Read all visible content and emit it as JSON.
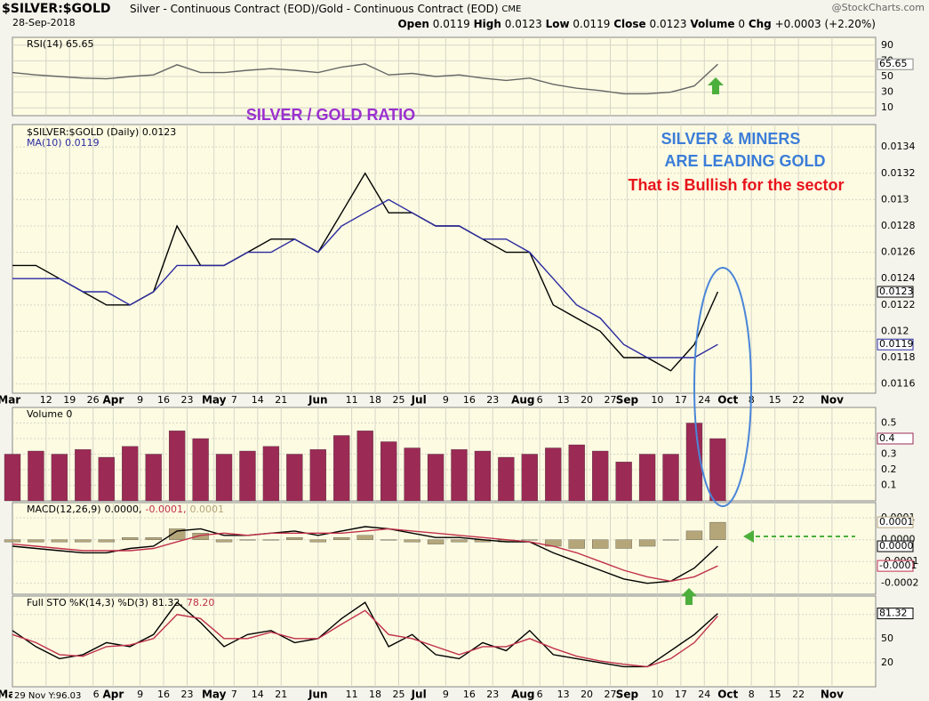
{
  "header": {
    "symbol": "$SILVER:$GOLD",
    "description": "Silver - Continuous Contract (EOD)/Gold - Continuous Contract (EOD)",
    "exchange": "CME",
    "source": "@StockCharts.com",
    "date": "28-Sep-2018",
    "quote": [
      "Open",
      "0.0119",
      "High",
      "0.0123",
      "Low",
      "0.0119",
      "Close",
      "0.0123",
      "Volume",
      "0",
      "Chg",
      "+0.0003 (+2.20%)"
    ],
    "cursor": "29 Nov Y:96.03"
  },
  "annotations": [
    "SILVER /  GOLD RATIO",
    "SILVER & MINERS",
    "ARE LEADING GOLD",
    "That is Bullish for the sector"
  ],
  "chart_data": [
    {
      "type": "line",
      "title": "RSI(14) 65.65",
      "x": [
        1,
        8,
        15,
        22,
        29,
        36,
        43,
        50,
        57,
        64,
        71,
        78,
        85,
        92,
        99,
        106,
        113,
        120,
        127,
        134,
        141,
        148,
        155,
        162,
        169,
        176,
        183,
        190,
        197,
        204,
        211
      ],
      "series": [
        {
          "color": "#666666",
          "values": [
            55,
            52,
            50,
            48,
            47,
            50,
            52,
            65,
            55,
            55,
            58,
            60,
            58,
            55,
            62,
            66,
            52,
            54,
            50,
            52,
            48,
            45,
            48,
            40,
            35,
            32,
            28,
            28,
            30,
            38,
            65.65
          ],
          "last_label": "65.65"
        }
      ],
      "ylim": [
        0,
        100
      ],
      "yticks": [
        10,
        30,
        50,
        70,
        90
      ],
      "grid": true
    },
    {
      "type": "line",
      "x": [
        1,
        8,
        15,
        22,
        29,
        36,
        43,
        50,
        57,
        64,
        71,
        78,
        85,
        92,
        99,
        106,
        113,
        120,
        127,
        134,
        141,
        148,
        155,
        162,
        169,
        176,
        183,
        190,
        197,
        204,
        211
      ],
      "series": [
        {
          "name": "$SILVER:$GOLD (Daily) 0.0123",
          "color": "#000000",
          "values": [
            0.0125,
            0.0125,
            0.0124,
            0.0123,
            0.0122,
            0.0122,
            0.0123,
            0.0128,
            0.0125,
            0.0125,
            0.0126,
            0.0127,
            0.0127,
            0.0126,
            0.0129,
            0.0132,
            0.0129,
            0.0129,
            0.0128,
            0.0128,
            0.0127,
            0.0126,
            0.0126,
            0.0122,
            0.0121,
            0.012,
            0.0118,
            0.0118,
            0.0117,
            0.0119,
            0.0123
          ],
          "last_label": "0.0123"
        },
        {
          "name": "MA(10) 0.0119",
          "color": "#2a2aa0",
          "values": [
            0.0124,
            0.0124,
            0.0124,
            0.0123,
            0.0123,
            0.0122,
            0.0123,
            0.0125,
            0.0125,
            0.0125,
            0.0126,
            0.0126,
            0.0127,
            0.0126,
            0.0128,
            0.0129,
            0.013,
            0.0129,
            0.0128,
            0.0128,
            0.0127,
            0.0127,
            0.0126,
            0.0124,
            0.0122,
            0.0121,
            0.0119,
            0.0118,
            0.0118,
            0.0118,
            0.0119
          ],
          "last_label": "0.0119"
        }
      ],
      "xlim": [
        1,
        258
      ],
      "xticks": [
        {
          "value": 0,
          "label": "Mar"
        },
        {
          "value": 11,
          "label": "12"
        },
        {
          "value": 18,
          "label": "19"
        },
        {
          "value": 25,
          "label": "26"
        },
        {
          "value": 31,
          "label": "Apr"
        },
        {
          "value": 39,
          "label": "9"
        },
        {
          "value": 46,
          "label": "16"
        },
        {
          "value": 53,
          "label": "23"
        },
        {
          "value": 61,
          "label": "May"
        },
        {
          "value": 67,
          "label": "7"
        },
        {
          "value": 74,
          "label": "14"
        },
        {
          "value": 81,
          "label": "21"
        },
        {
          "value": 92,
          "label": "Jun"
        },
        {
          "value": 102,
          "label": "11"
        },
        {
          "value": 109,
          "label": "18"
        },
        {
          "value": 116,
          "label": "25"
        },
        {
          "value": 122,
          "label": "Jul"
        },
        {
          "value": 130,
          "label": "9"
        },
        {
          "value": 137,
          "label": "16"
        },
        {
          "value": 144,
          "label": "23"
        },
        {
          "value": 153,
          "label": "Aug"
        },
        {
          "value": 158,
          "label": "6"
        },
        {
          "value": 165,
          "label": "13"
        },
        {
          "value": 172,
          "label": "20"
        },
        {
          "value": 179,
          "label": "27"
        },
        {
          "value": 184,
          "label": "Sep"
        },
        {
          "value": 193,
          "label": "10"
        },
        {
          "value": 200,
          "label": "17"
        },
        {
          "value": 207,
          "label": "24"
        },
        {
          "value": 214,
          "label": "Oct"
        },
        {
          "value": 221,
          "label": "8"
        },
        {
          "value": 228,
          "label": "15"
        },
        {
          "value": 235,
          "label": "22"
        },
        {
          "value": 245,
          "label": "Nov"
        }
      ],
      "ylim": [
        0.01153,
        0.01357
      ],
      "yticks": [
        0.0116,
        0.0118,
        0.012,
        0.0122,
        0.0124,
        0.0126,
        0.0128,
        0.013,
        0.0132,
        0.0134
      ],
      "grid": true
    },
    {
      "type": "bar",
      "title": "Volume 0",
      "x": [
        1,
        8,
        15,
        22,
        29,
        36,
        43,
        50,
        57,
        64,
        71,
        78,
        85,
        92,
        99,
        106,
        113,
        120,
        127,
        134,
        141,
        148,
        155,
        162,
        169,
        176,
        183,
        190,
        197,
        204,
        211
      ],
      "series": [
        {
          "color": "#9b2a55",
          "values": [
            0.3,
            0.32,
            0.3,
            0.33,
            0.28,
            0.35,
            0.3,
            0.45,
            0.4,
            0.3,
            0.32,
            0.35,
            0.3,
            0.33,
            0.42,
            0.45,
            0.38,
            0.34,
            0.3,
            0.33,
            0.32,
            0.28,
            0.3,
            0.34,
            0.36,
            0.32,
            0.25,
            0.3,
            0.3,
            0.5,
            0.4
          ],
          "last_label": "0.4"
        }
      ],
      "ylim": [
        0,
        0.6
      ],
      "yticks": [
        0.1,
        0.2,
        0.3,
        0.4,
        0.5
      ],
      "grid": true
    },
    {
      "type": "combo",
      "title": "MACD(12,26,9)",
      "title_values": [
        "0.0000,",
        "-0.0001,",
        "0.0001"
      ],
      "x": [
        1,
        8,
        15,
        22,
        29,
        36,
        43,
        50,
        57,
        64,
        71,
        78,
        85,
        92,
        99,
        106,
        113,
        120,
        127,
        134,
        141,
        148,
        155,
        162,
        169,
        176,
        183,
        190,
        197,
        204,
        211
      ],
      "series": [
        {
          "type": "bar",
          "color": "#b5a67a",
          "values": [
            -1e-05,
            -1e-05,
            -1e-05,
            -1e-05,
            -1e-05,
            1e-05,
            1e-05,
            5e-05,
            3e-05,
            -1e-05,
            0,
            0,
            1e-05,
            -1e-05,
            1e-05,
            2e-05,
            0,
            -1e-05,
            -2e-05,
            -1e-05,
            -1e-05,
            -1e-05,
            0,
            -3e-05,
            -4e-05,
            -4e-05,
            -4e-05,
            -3e-05,
            0,
            4e-05,
            8e-05
          ],
          "last_label": "0.0001"
        },
        {
          "type": "line",
          "color": "#000000",
          "values": [
            -3e-05,
            -4e-05,
            -5e-05,
            -6e-05,
            -6e-05,
            -4e-05,
            -3e-05,
            4e-05,
            5e-05,
            2e-05,
            2e-05,
            3e-05,
            4e-05,
            2e-05,
            4e-05,
            6e-05,
            5e-05,
            3e-05,
            1e-05,
            1e-05,
            0,
            -1e-05,
            -1e-05,
            -6e-05,
            -0.0001,
            -0.00014,
            -0.00018,
            -0.0002,
            -0.00019,
            -0.00013,
            -3e-05
          ],
          "last_label": "0.0000"
        },
        {
          "type": "line",
          "color": "#c0304a",
          "values": [
            -2e-05,
            -3e-05,
            -4e-05,
            -5e-05,
            -5e-05,
            -5e-05,
            -4e-05,
            -1e-05,
            2e-05,
            3e-05,
            2e-05,
            3e-05,
            3e-05,
            3e-05,
            3e-05,
            4e-05,
            5e-05,
            4e-05,
            3e-05,
            2e-05,
            1e-05,
            0,
            -1e-05,
            -3e-05,
            -6e-05,
            -0.0001,
            -0.00014,
            -0.00017,
            -0.00019,
            -0.00017,
            -0.00012
          ],
          "last_label": "-0.0001"
        }
      ],
      "ylim": [
        -0.00025,
        0.00017
      ],
      "yticks": [
        0.0001,
        {
          "value": 0,
          "label": "0.0000"
        },
        -0.0001,
        -0.0002
      ],
      "grid": true
    },
    {
      "type": "line",
      "title": "Full STO %K(14,3) %D(3)",
      "title_values": [
        "81.32,",
        "78.20"
      ],
      "x": [
        1,
        8,
        15,
        22,
        29,
        36,
        43,
        50,
        57,
        64,
        71,
        78,
        85,
        92,
        99,
        106,
        113,
        120,
        127,
        134,
        141,
        148,
        155,
        162,
        169,
        176,
        183,
        190,
        197,
        204,
        211
      ],
      "series": [
        {
          "color": "#000000",
          "values": [
            60,
            40,
            25,
            30,
            45,
            40,
            55,
            95,
            70,
            40,
            55,
            60,
            45,
            50,
            75,
            95,
            40,
            55,
            30,
            25,
            45,
            35,
            60,
            30,
            25,
            20,
            15,
            15,
            35,
            55,
            81.32
          ],
          "last_label": "81.32"
        },
        {
          "color": "#c0304a",
          "values": [
            55,
            45,
            30,
            28,
            40,
            42,
            50,
            80,
            75,
            50,
            50,
            58,
            50,
            50,
            68,
            85,
            55,
            50,
            40,
            30,
            40,
            40,
            50,
            38,
            28,
            22,
            18,
            15,
            25,
            45,
            78.2
          ]
        }
      ],
      "ylim": [
        -10,
        103
      ],
      "yticks": [
        20,
        50,
        80
      ],
      "grid": true
    }
  ]
}
